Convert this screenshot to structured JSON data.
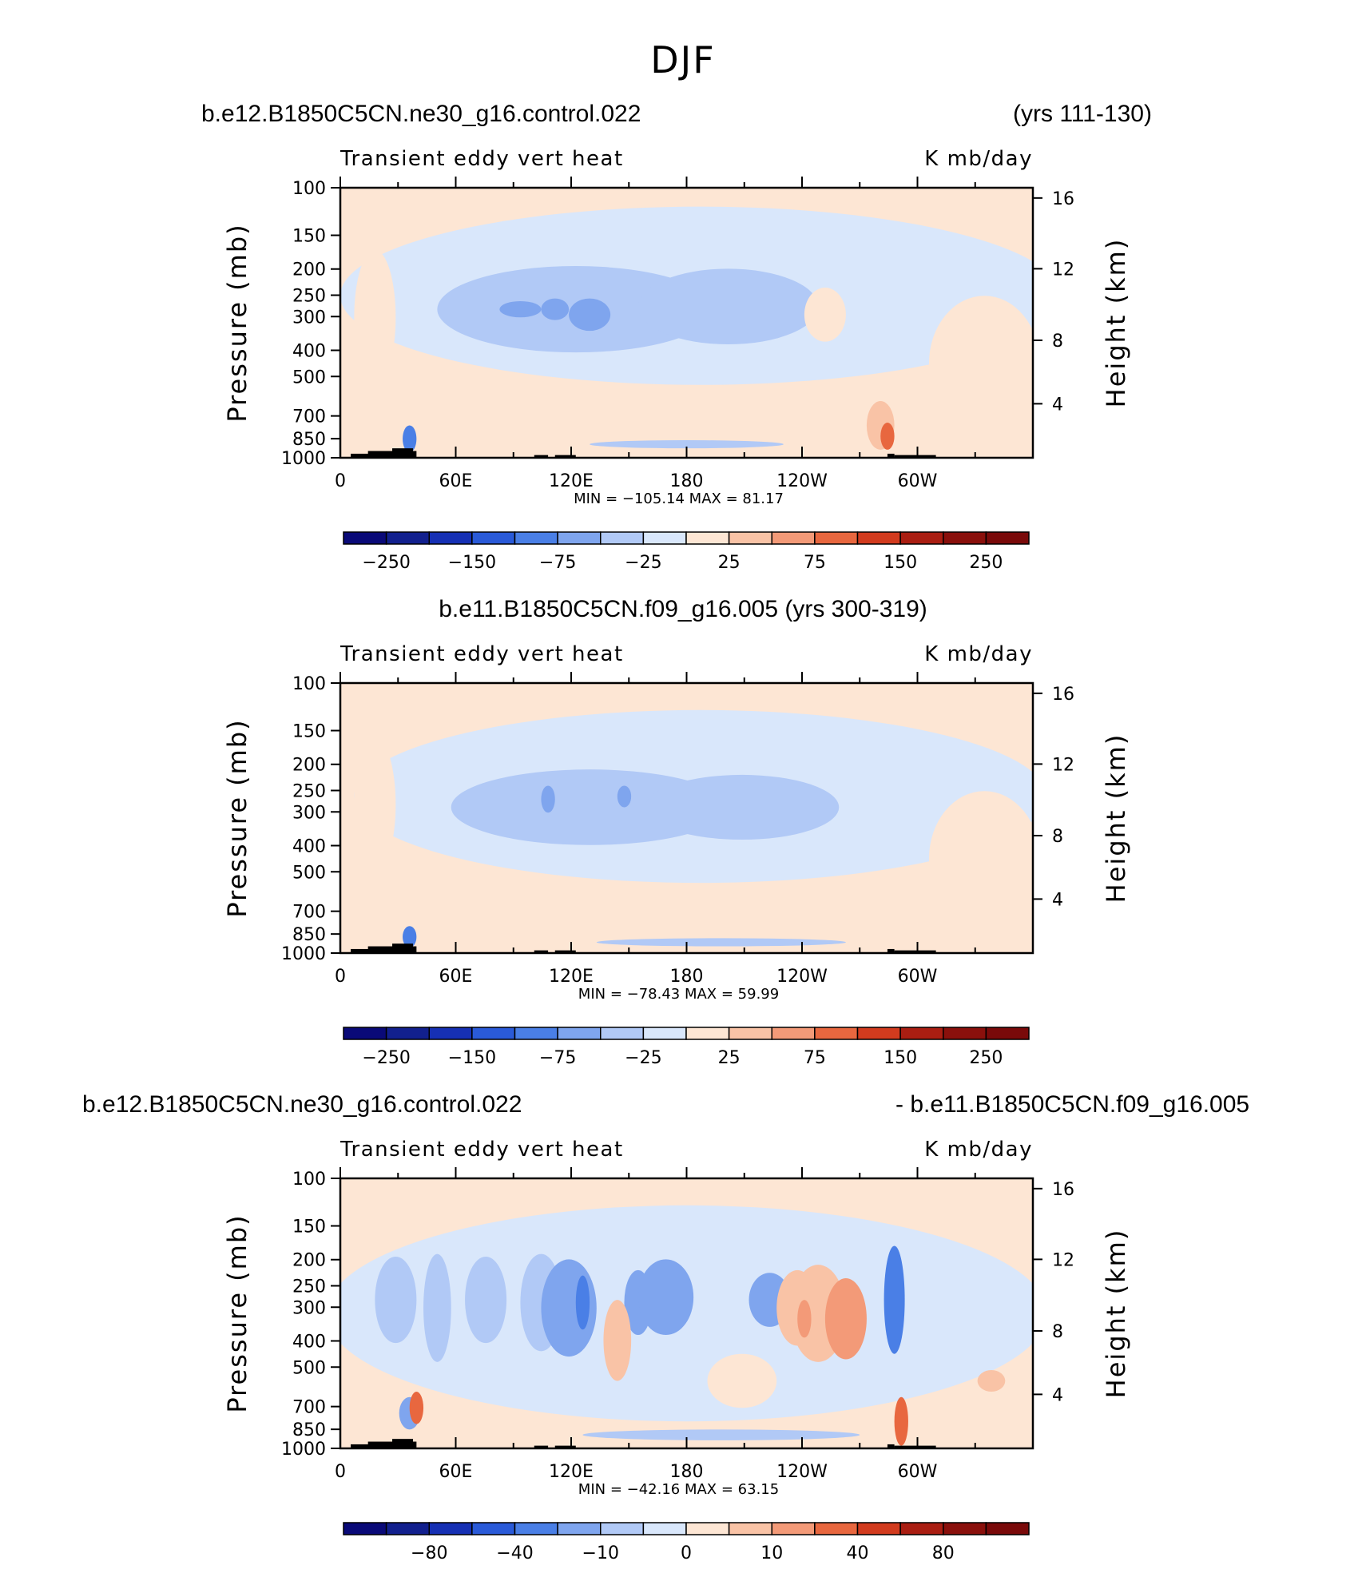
{
  "figure": {
    "title": "DJF"
  },
  "panels": [
    {
      "labels": {
        "left": "b.e12.B1850C5CN.ne30_g16.control.022",
        "right": "(yrs 111-130)",
        "center": ""
      },
      "stats": "MIN = −105.14   MAX =   81.17"
    },
    {
      "labels": {
        "left": "",
        "right": "",
        "center": "b.e11.B1850C5CN.f09_g16.005 (yrs 300-319)"
      },
      "stats": "MIN = −78.43   MAX =   59.99"
    },
    {
      "labels": {
        "left": "b.e12.B1850C5CN.ne30_g16.control.022",
        "right": "- b.e11.B1850C5CN.f09_g16.005",
        "center": ""
      },
      "stats": "MIN = −42.16   MAX =   63.15"
    }
  ],
  "chart_data": [
    {
      "type": "heatmap",
      "title": "Transient eddy vert heat",
      "units": "K mb/day",
      "ylabel": "Pressure (mb)",
      "y2label": "Height (km)",
      "x_ticks": [
        "0",
        "60E",
        "120E",
        "180",
        "120W",
        "60W"
      ],
      "y_ticks": [
        "100",
        "150",
        "200",
        "250",
        "300",
        "400",
        "500",
        "700",
        "850",
        "1000"
      ],
      "y2_ticks": [
        "16",
        "12",
        "8",
        "4"
      ],
      "ylim": [
        1000,
        100
      ],
      "min": -105.14,
      "max": 81.17,
      "colorbar": {
        "labels": [
          "−250",
          "−150",
          "−75",
          "−25",
          "25",
          "75",
          "150",
          "250"
        ]
      }
    },
    {
      "type": "heatmap",
      "title": "Transient eddy vert heat",
      "units": "K mb/day",
      "ylabel": "Pressure (mb)",
      "y2label": "Height (km)",
      "x_ticks": [
        "0",
        "60E",
        "120E",
        "180",
        "120W",
        "60W"
      ],
      "y_ticks": [
        "100",
        "150",
        "200",
        "250",
        "300",
        "400",
        "500",
        "700",
        "850",
        "1000"
      ],
      "y2_ticks": [
        "16",
        "12",
        "8",
        "4"
      ],
      "ylim": [
        1000,
        100
      ],
      "min": -78.43,
      "max": 59.99,
      "colorbar": {
        "labels": [
          "−250",
          "−150",
          "−75",
          "−25",
          "25",
          "75",
          "150",
          "250"
        ]
      }
    },
    {
      "type": "heatmap",
      "title": "Transient eddy vert heat",
      "units": "K mb/day",
      "ylabel": "Pressure (mb)",
      "y2label": "Height (km)",
      "x_ticks": [
        "0",
        "60E",
        "120E",
        "180",
        "120W",
        "60W"
      ],
      "y_ticks": [
        "100",
        "150",
        "200",
        "250",
        "300",
        "400",
        "500",
        "700",
        "850",
        "1000"
      ],
      "y2_ticks": [
        "16",
        "12",
        "8",
        "4"
      ],
      "ylim": [
        1000,
        100
      ],
      "min": -42.16,
      "max": 63.15,
      "colorbar": {
        "labels": [
          "−80",
          "−40",
          "−10",
          "0",
          "10",
          "40",
          "80"
        ]
      }
    }
  ],
  "palette": [
    "#0a0a78",
    "#1630b4",
    "#2a5ad8",
    "#4a7fe6",
    "#7fa5ee",
    "#b1c9f6",
    "#d9e7fb",
    "#fde6d4",
    "#f9c3a6",
    "#f39a78",
    "#e8673f",
    "#d23b1e",
    "#aa1e12",
    "#7a0a0a"
  ]
}
